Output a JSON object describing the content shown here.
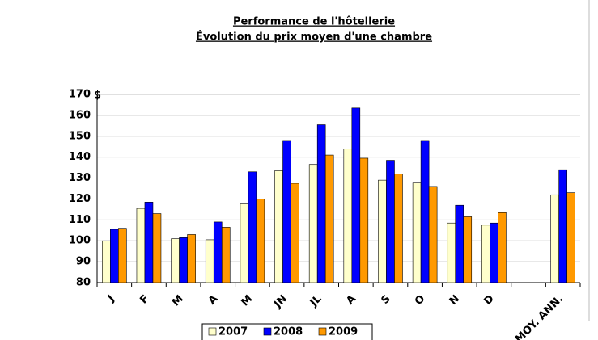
{
  "chart_data": {
    "type": "bar",
    "title": "Performance de l'hôtellerie",
    "subtitle": "Évolution du prix moyen d'une chambre",
    "y_label": "$",
    "categories": [
      "J",
      "F",
      "M",
      "A",
      "M",
      "JN",
      "JL",
      "A",
      "S",
      "O",
      "N",
      "D",
      null,
      "MOY. ANN."
    ],
    "series": [
      {
        "name": "2007",
        "color": "#ffffcc",
        "values": [
          100,
          115.5,
          101,
          100.5,
          118,
          133.5,
          136.5,
          144,
          129,
          128,
          108.5,
          107.5,
          null,
          122
        ]
      },
      {
        "name": "2008",
        "color": "#0000ff",
        "values": [
          105.5,
          118.5,
          101.5,
          109,
          133,
          148,
          155.5,
          163.5,
          138.5,
          148,
          117,
          108.5,
          null,
          134
        ]
      },
      {
        "name": "2009",
        "color": "#ff9900",
        "values": [
          106,
          113,
          103,
          106.5,
          120,
          127.5,
          141,
          139.5,
          132,
          126,
          111.5,
          113.5,
          null,
          123
        ]
      }
    ],
    "ylim": [
      80,
      170
    ],
    "yticks": [
      80,
      90,
      100,
      110,
      120,
      130,
      140,
      150,
      160,
      170
    ],
    "grid": true,
    "legend": "bottom"
  }
}
